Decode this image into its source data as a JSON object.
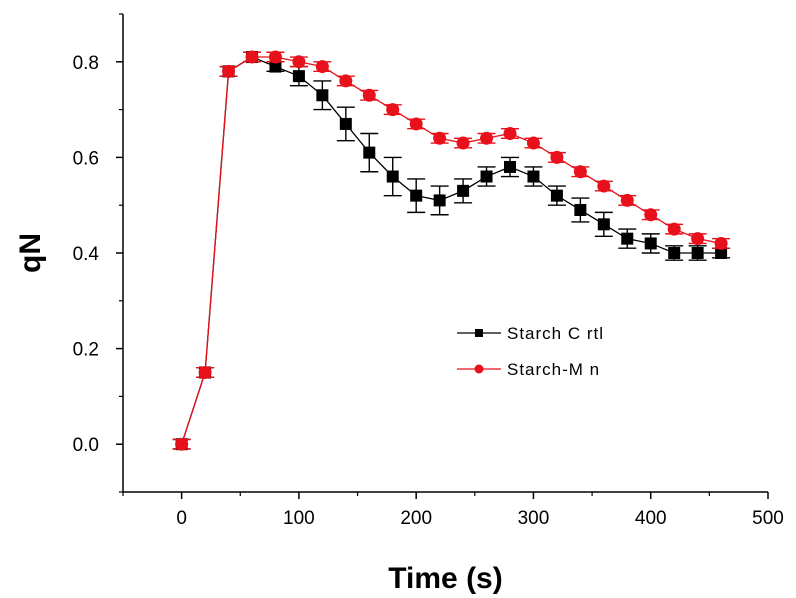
{
  "chart_data": {
    "type": "line",
    "title": "",
    "xlabel": "Time (s)",
    "ylabel": "qN",
    "xlim": [
      -50,
      500
    ],
    "ylim": [
      -0.1,
      0.9
    ],
    "x_ticks": [
      0,
      100,
      200,
      300,
      400,
      500
    ],
    "x_tick_labels": [
      "0",
      "100",
      "200",
      "300",
      "400",
      "500"
    ],
    "y_ticks": [
      0.0,
      0.2,
      0.4,
      0.6,
      0.8
    ],
    "y_tick_labels": [
      "0.0",
      "0.2",
      "0.4",
      "0.6",
      "0.8"
    ],
    "grid": false,
    "legend_position": "center-right",
    "series": [
      {
        "name": "Starch C rtl",
        "color": "#000000",
        "marker": "square",
        "x": [
          0,
          20,
          40,
          60,
          80,
          100,
          120,
          140,
          160,
          180,
          200,
          220,
          240,
          260,
          280,
          300,
          320,
          340,
          360,
          380,
          400,
          420,
          440,
          460
        ],
        "y": [
          0.0,
          0.15,
          0.78,
          0.81,
          0.79,
          0.77,
          0.73,
          0.67,
          0.61,
          0.56,
          0.52,
          0.51,
          0.53,
          0.56,
          0.58,
          0.56,
          0.52,
          0.49,
          0.46,
          0.43,
          0.42,
          0.4,
          0.4,
          0.4
        ],
        "err": [
          0.01,
          0.01,
          0.01,
          0.01,
          0.01,
          0.02,
          0.03,
          0.035,
          0.04,
          0.04,
          0.035,
          0.03,
          0.025,
          0.02,
          0.02,
          0.02,
          0.02,
          0.025,
          0.025,
          0.02,
          0.02,
          0.015,
          0.015,
          0.01
        ]
      },
      {
        "name": "Starch-M n",
        "color": "#e8101a",
        "marker": "circle",
        "x": [
          0,
          20,
          40,
          60,
          80,
          100,
          120,
          140,
          160,
          180,
          200,
          220,
          240,
          260,
          280,
          300,
          320,
          340,
          360,
          380,
          400,
          420,
          440,
          460
        ],
        "y": [
          0.0,
          0.15,
          0.78,
          0.81,
          0.81,
          0.8,
          0.79,
          0.76,
          0.73,
          0.7,
          0.67,
          0.64,
          0.63,
          0.64,
          0.65,
          0.63,
          0.6,
          0.57,
          0.54,
          0.51,
          0.48,
          0.45,
          0.43,
          0.42
        ],
        "err": [
          0.01,
          0.01,
          0.01,
          0.01,
          0.01,
          0.01,
          0.01,
          0.01,
          0.01,
          0.01,
          0.01,
          0.01,
          0.01,
          0.01,
          0.01,
          0.01,
          0.01,
          0.01,
          0.01,
          0.01,
          0.01,
          0.01,
          0.01,
          0.01
        ]
      }
    ]
  }
}
